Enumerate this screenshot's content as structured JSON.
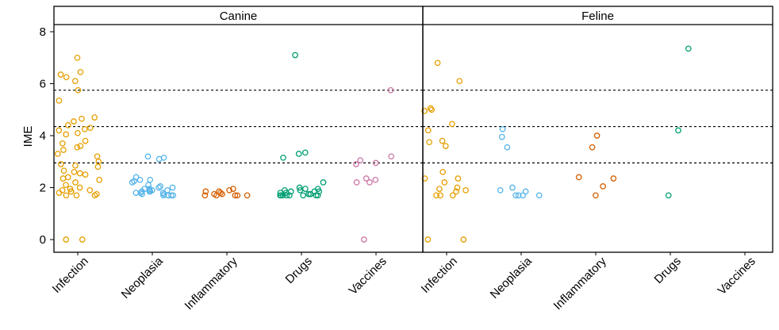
{
  "chart_data": {
    "type": "scatter",
    "ylabel": "IME",
    "ylim": [
      -0.5,
      8.3
    ],
    "yticks": [
      0,
      2,
      4,
      6,
      8
    ],
    "categories": [
      "Infection",
      "Neoplasia",
      "Inflammatory",
      "Drugs",
      "Vaccines"
    ],
    "category_colors": {
      "Infection": "#E69F00",
      "Neoplasia": "#56B4E9",
      "Inflammatory": "#D55E00",
      "Drugs": "#009E73",
      "Vaccines": "#CC79A7"
    },
    "reference_lines": [
      2.95,
      4.35,
      5.75
    ],
    "grid": false,
    "legend": "none",
    "panels": [
      {
        "title": "Canine",
        "points": {
          "Infection": [
            7.0,
            6.45,
            6.35,
            6.25,
            6.1,
            5.75,
            5.35,
            4.7,
            4.65,
            4.55,
            4.4,
            4.3,
            4.25,
            4.2,
            4.1,
            4.05,
            3.8,
            3.7,
            3.6,
            3.55,
            3.45,
            3.3,
            3.2,
            3.0,
            2.9,
            2.85,
            2.8,
            2.65,
            2.6,
            2.55,
            2.5,
            2.4,
            2.35,
            2.3,
            2.2,
            2.1,
            2.0,
            1.95,
            1.9,
            1.9,
            1.85,
            1.85,
            1.8,
            1.75,
            1.7,
            1.7,
            1.7,
            0.0,
            0.0
          ],
          "Neoplasia": [
            3.2,
            3.15,
            3.1,
            2.4,
            2.3,
            2.3,
            2.25,
            2.2,
            2.1,
            2.05,
            2.0,
            2.0,
            1.95,
            1.95,
            1.9,
            1.9,
            1.9,
            1.85,
            1.85,
            1.85,
            1.8,
            1.8,
            1.8,
            1.75,
            1.75,
            1.7,
            1.7,
            1.7,
            1.7,
            1.7
          ],
          "Inflammatory": [
            1.95,
            1.9,
            1.85,
            1.85,
            1.8,
            1.75,
            1.75,
            1.7,
            1.7,
            1.7,
            1.7,
            1.7
          ],
          "Drugs": [
            7.1,
            3.35,
            3.3,
            3.15,
            2.2,
            2.0,
            1.95,
            1.95,
            1.9,
            1.9,
            1.85,
            1.85,
            1.85,
            1.8,
            1.8,
            1.75,
            1.75,
            1.75,
            1.7,
            1.7,
            1.7,
            1.7,
            1.7,
            1.7,
            1.7,
            1.7
          ],
          "Vaccines": [
            5.75,
            3.2,
            3.05,
            2.95,
            2.9,
            2.35,
            2.3,
            2.2,
            2.2,
            0.0
          ]
        }
      },
      {
        "title": "Feline",
        "points": {
          "Infection": [
            6.8,
            6.1,
            5.05,
            5.0,
            4.95,
            4.45,
            4.2,
            3.8,
            3.75,
            3.6,
            2.6,
            2.35,
            2.35,
            2.2,
            2.0,
            1.95,
            1.9,
            1.85,
            1.7,
            1.7,
            1.7,
            0.0,
            0.0
          ],
          "Neoplasia": [
            4.25,
            3.95,
            3.55,
            2.0,
            1.9,
            1.85,
            1.7,
            1.7,
            1.7,
            1.7
          ],
          "Inflammatory": [
            4.0,
            3.55,
            2.4,
            2.35,
            2.05,
            1.7
          ],
          "Drugs": [
            7.35,
            4.2,
            1.7
          ],
          "Vaccines": []
        }
      }
    ]
  }
}
